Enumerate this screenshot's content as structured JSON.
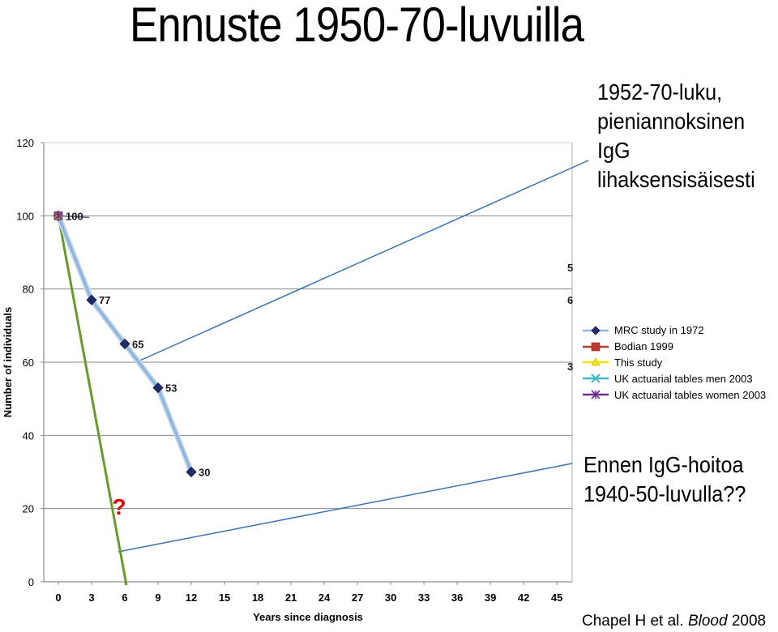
{
  "slide": {
    "title": "Ennuste 1950-70-luvuilla",
    "callout_top": [
      "1952-70-luku,",
      "pieniannoksinen",
      "IgG",
      "lihaksensisäisesti"
    ],
    "callout_bottom": [
      "Ennen IgG-hoitoa",
      "1940-50-luvulla??"
    ],
    "citation_author": "Chapel H et al. ",
    "citation_journal": "Blood",
    "citation_year": " 2008"
  },
  "chart_data": {
    "type": "line",
    "title": "",
    "xlabel": "Years since diagnosis",
    "ylabel": "Number of individuals",
    "xlim": [
      0,
      45
    ],
    "ylim": [
      0,
      120
    ],
    "xticks": [
      0,
      3,
      6,
      9,
      12,
      15,
      18,
      21,
      24,
      27,
      30,
      33,
      36,
      39,
      42,
      45
    ],
    "yticks": [
      0,
      20,
      40,
      60,
      80,
      100,
      120
    ],
    "grid": "horizontal",
    "legend_position": "right",
    "series": [
      {
        "name": "MRC study in 1972",
        "color": "#1f2d6e",
        "line_color": "#8fb6e0",
        "marker": "diamond",
        "x": [
          0,
          3,
          6,
          9,
          12
        ],
        "y": [
          100,
          77,
          65,
          53,
          30
        ],
        "labels": [
          "100",
          "77",
          "65",
          "53",
          "30"
        ]
      },
      {
        "name": "Bodian 1999",
        "color": "#c0392b",
        "marker": "square",
        "x": [
          0
        ],
        "y": [
          100
        ]
      },
      {
        "name": "This study",
        "color": "#f2e600",
        "marker": "triangle",
        "x": [
          0
        ],
        "y": [
          100
        ]
      },
      {
        "name": "UK actuarial tables men 2003",
        "color": "#3cb8c8",
        "marker": "x",
        "x": [
          0
        ],
        "y": [
          100
        ]
      },
      {
        "name": "UK actuarial tables women 2003",
        "color": "#6a2c91",
        "marker": "asterisk",
        "x": [
          0
        ],
        "y": [
          100
        ]
      }
    ],
    "annotations": {
      "estimate_line": {
        "color": "#6a9a2a",
        "x": [
          0,
          6
        ],
        "y": [
          100,
          0
        ]
      },
      "question_mark": {
        "text": "?",
        "color": "#e00000",
        "x": 5.3,
        "y": 21
      },
      "right_edge_fragments": [
        "5",
        "6",
        "3"
      ]
    }
  }
}
